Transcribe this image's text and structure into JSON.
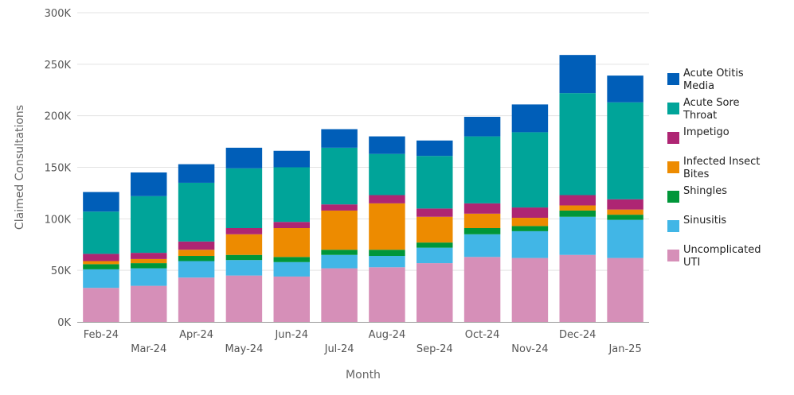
{
  "chart_data": {
    "type": "bar",
    "stacked": true,
    "xlabel": "Month",
    "ylabel": "Claimed Consultations",
    "ylim": [
      0,
      300000
    ],
    "yticks": [
      {
        "value": 0,
        "label": "0K"
      },
      {
        "value": 50000,
        "label": "50K"
      },
      {
        "value": 100000,
        "label": "100K"
      },
      {
        "value": 150000,
        "label": "150K"
      },
      {
        "value": 200000,
        "label": "200K"
      },
      {
        "value": 250000,
        "label": "250K"
      },
      {
        "value": 300000,
        "label": "300K"
      }
    ],
    "grid": true,
    "legend_position": "right",
    "categories": [
      "Feb-24",
      "Mar-24",
      "Apr-24",
      "May-24",
      "Jun-24",
      "Jul-24",
      "Aug-24",
      "Sep-24",
      "Oct-24",
      "Nov-24",
      "Dec-24",
      "Jan-25"
    ],
    "series": [
      {
        "name": "Uncomplicated UTI",
        "color": "#d68fb8",
        "values": [
          33000,
          35000,
          43000,
          45000,
          44000,
          52000,
          53000,
          57000,
          63000,
          62000,
          65000,
          62000
        ]
      },
      {
        "name": "Sinusitis",
        "color": "#41b6e6",
        "values": [
          18000,
          17000,
          16000,
          15000,
          14000,
          13000,
          11000,
          15000,
          22000,
          26000,
          37000,
          37000
        ]
      },
      {
        "name": "Shingles",
        "color": "#009639",
        "values": [
          5000,
          5000,
          5000,
          5000,
          5000,
          5000,
          6000,
          5000,
          6000,
          5000,
          6000,
          5000
        ]
      },
      {
        "name": "Infected Insect Bites",
        "color": "#ed8b00",
        "values": [
          3000,
          4000,
          6000,
          20000,
          28000,
          38000,
          45000,
          25000,
          14000,
          8000,
          5000,
          5000
        ]
      },
      {
        "name": "Impetigo",
        "color": "#ae2573",
        "values": [
          7000,
          6000,
          8000,
          6000,
          6000,
          6000,
          8000,
          8000,
          10000,
          10000,
          10000,
          10000
        ]
      },
      {
        "name": "Acute Sore Throat",
        "color": "#00a499",
        "values": [
          41000,
          55000,
          57000,
          58000,
          53000,
          55000,
          40000,
          51000,
          65000,
          73000,
          99000,
          94000
        ]
      },
      {
        "name": "Acute Otitis Media",
        "color": "#005eb8",
        "values": [
          19000,
          23000,
          18000,
          20000,
          16000,
          18000,
          17000,
          15000,
          19000,
          27000,
          37000,
          26000
        ]
      }
    ],
    "legend_order": [
      "Acute Otitis Media",
      "Acute Sore Throat",
      "Impetigo",
      "Infected Insect Bites",
      "Shingles",
      "Sinusitis",
      "Uncomplicated UTI"
    ],
    "legend_labels": {
      "Acute Otitis Media": [
        "Acute Otitis",
        "Media"
      ],
      "Acute Sore Throat": [
        "Acute Sore",
        "Throat"
      ],
      "Impetigo": [
        "Impetigo"
      ],
      "Infected Insect Bites": [
        "Infected Insect",
        "Bites"
      ],
      "Shingles": [
        "Shingles"
      ],
      "Sinusitis": [
        "Sinusitis"
      ],
      "Uncomplicated UTI": [
        "Uncomplicated",
        "UTI"
      ]
    }
  }
}
